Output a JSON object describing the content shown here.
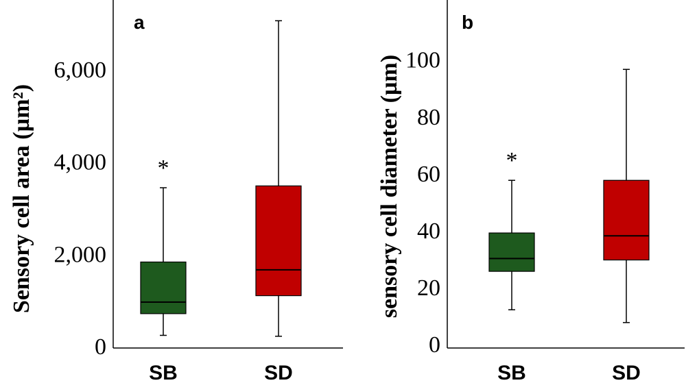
{
  "chart_data": [
    {
      "type": "box",
      "panel_label": "a",
      "ylabel": "Sensory cell area (µm²)",
      "ylim": [
        0,
        7500
      ],
      "yticks": [
        0,
        2000,
        4000,
        6000
      ],
      "ytick_labels": [
        "0",
        "2,000",
        "4,000",
        "6,000"
      ],
      "categories": [
        "SB",
        "SD"
      ],
      "boxes": [
        {
          "category": "SB",
          "whisker_low": 230,
          "q1": 700,
          "median": 950,
          "q3": 1820,
          "whisker_high": 3430,
          "color": "#1e5a1e",
          "annotation": "*"
        },
        {
          "category": "SD",
          "whisker_low": 210,
          "q1": 1090,
          "median": 1650,
          "q3": 3470,
          "whisker_high": 7050,
          "color": "#c00000",
          "annotation": ""
        }
      ]
    },
    {
      "type": "box",
      "panel_label": "b",
      "ylabel": "sensory cell diameter (µm)",
      "ylim": [
        0,
        118
      ],
      "yticks": [
        0,
        20,
        40,
        60,
        80,
        100
      ],
      "ytick_labels": [
        "0",
        "20",
        "40",
        "60",
        "80",
        "100"
      ],
      "categories": [
        "SB",
        "SD"
      ],
      "boxes": [
        {
          "category": "SB",
          "whisker_low": 12,
          "q1": 25.5,
          "median": 30,
          "q3": 39,
          "whisker_high": 57.5,
          "color": "#1e5a1e",
          "annotation": "*"
        },
        {
          "category": "SD",
          "whisker_low": 7.5,
          "q1": 29.5,
          "median": 38,
          "q3": 57.5,
          "whisker_high": 96.5,
          "color": "#c00000",
          "annotation": ""
        }
      ]
    }
  ]
}
